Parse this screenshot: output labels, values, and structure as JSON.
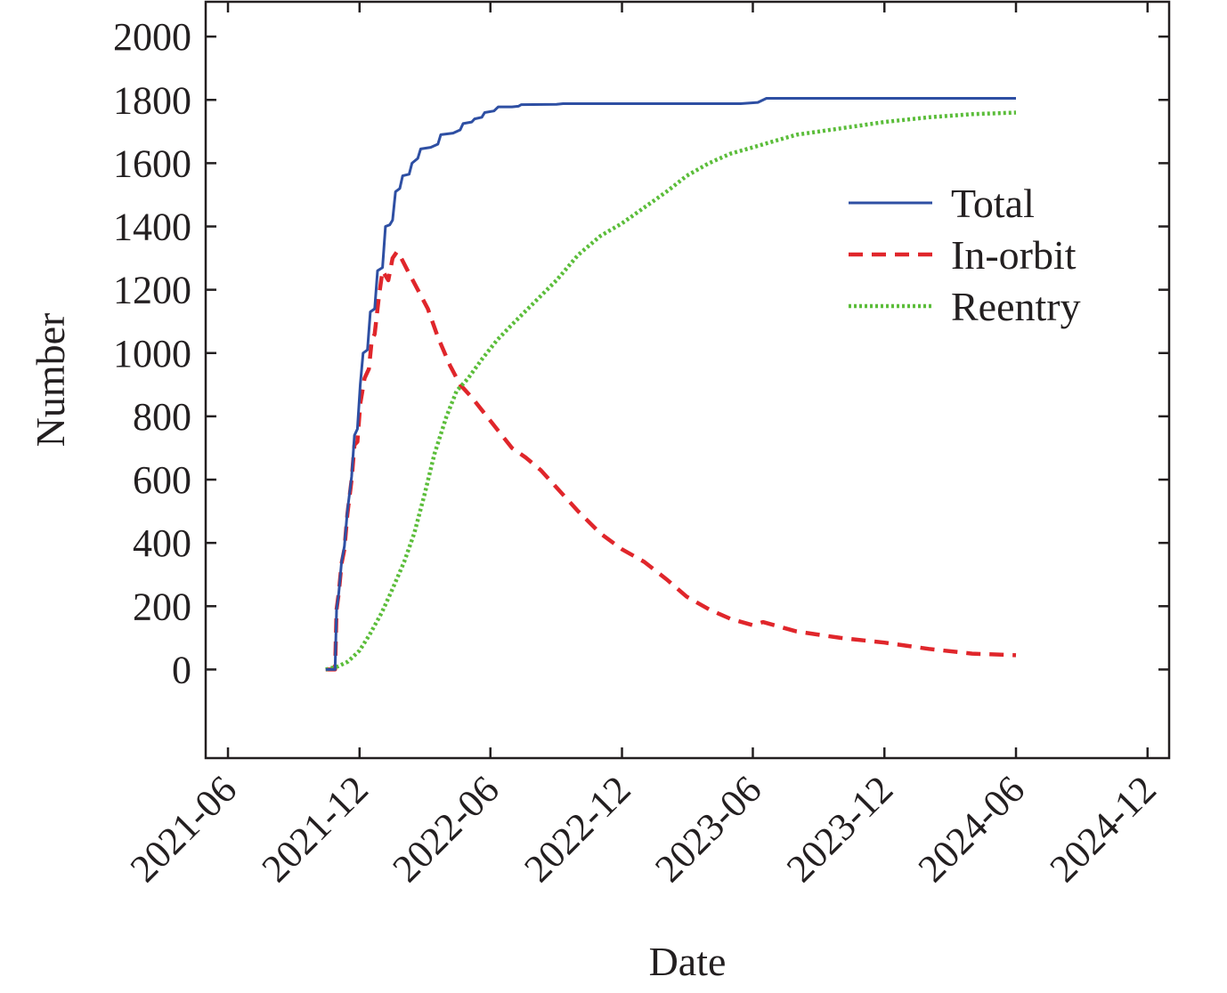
{
  "chart_data": {
    "type": "line",
    "title": "",
    "xlabel": "Date",
    "ylabel": "Number",
    "x_ticks": [
      "2021-06",
      "2021-12",
      "2022-06",
      "2022-12",
      "2023-06",
      "2023-12",
      "2024-06",
      "2024-12"
    ],
    "y_ticks": [
      0,
      200,
      400,
      600,
      800,
      1000,
      1200,
      1400,
      1600,
      1800,
      2000
    ],
    "xlim": [
      "2021-05-01",
      "2024-12-31"
    ],
    "ylim": [
      -280,
      2110
    ],
    "grid": false,
    "legend_position": "upper-right",
    "series": [
      {
        "name": "Total",
        "color": "#2e4fa3",
        "dash": "solid",
        "points": [
          [
            "2021-10-15",
            0
          ],
          [
            "2021-10-28",
            0
          ],
          [
            "2021-10-30",
            190
          ],
          [
            "2021-11-02",
            240
          ],
          [
            "2021-11-06",
            340
          ],
          [
            "2021-11-10",
            390
          ],
          [
            "2021-11-14",
            500
          ],
          [
            "2021-11-20",
            610
          ],
          [
            "2021-11-24",
            740
          ],
          [
            "2021-11-28",
            760
          ],
          [
            "2021-12-02",
            900
          ],
          [
            "2021-12-06",
            1000
          ],
          [
            "2021-12-12",
            1010
          ],
          [
            "2021-12-16",
            1130
          ],
          [
            "2021-12-22",
            1140
          ],
          [
            "2021-12-26",
            1260
          ],
          [
            "2022-01-02",
            1270
          ],
          [
            "2022-01-06",
            1400
          ],
          [
            "2022-01-12",
            1405
          ],
          [
            "2022-01-16",
            1420
          ],
          [
            "2022-01-20",
            1510
          ],
          [
            "2022-01-26",
            1520
          ],
          [
            "2022-01-30",
            1560
          ],
          [
            "2022-02-08",
            1565
          ],
          [
            "2022-02-12",
            1600
          ],
          [
            "2022-02-20",
            1615
          ],
          [
            "2022-02-24",
            1645
          ],
          [
            "2022-03-10",
            1650
          ],
          [
            "2022-03-20",
            1660
          ],
          [
            "2022-03-24",
            1690
          ],
          [
            "2022-04-10",
            1695
          ],
          [
            "2022-04-20",
            1705
          ],
          [
            "2022-04-24",
            1725
          ],
          [
            "2022-05-06",
            1730
          ],
          [
            "2022-05-10",
            1740
          ],
          [
            "2022-05-20",
            1745
          ],
          [
            "2022-05-24",
            1760
          ],
          [
            "2022-06-06",
            1765
          ],
          [
            "2022-06-12",
            1778
          ],
          [
            "2022-07-01",
            1778
          ],
          [
            "2022-07-10",
            1780
          ],
          [
            "2022-07-14",
            1785
          ],
          [
            "2022-09-01",
            1786
          ],
          [
            "2022-09-10",
            1788
          ],
          [
            "2023-05-15",
            1788
          ],
          [
            "2023-06-08",
            1792
          ],
          [
            "2023-06-20",
            1805
          ],
          [
            "2024-06-01",
            1805
          ]
        ]
      },
      {
        "name": "In-orbit",
        "color": "#e0262b",
        "dash": "dashed",
        "points": [
          [
            "2021-10-15",
            0
          ],
          [
            "2021-10-28",
            0
          ],
          [
            "2021-10-30",
            190
          ],
          [
            "2021-11-02",
            240
          ],
          [
            "2021-11-06",
            335
          ],
          [
            "2021-11-10",
            380
          ],
          [
            "2021-11-14",
            490
          ],
          [
            "2021-11-20",
            600
          ],
          [
            "2021-11-24",
            710
          ],
          [
            "2021-11-28",
            720
          ],
          [
            "2021-12-02",
            840
          ],
          [
            "2021-12-08",
            920
          ],
          [
            "2021-12-14",
            950
          ],
          [
            "2021-12-18",
            1040
          ],
          [
            "2021-12-22",
            1060
          ],
          [
            "2021-12-28",
            1180
          ],
          [
            "2022-01-02",
            1260
          ],
          [
            "2022-01-10",
            1230
          ],
          [
            "2022-01-16",
            1300
          ],
          [
            "2022-01-22",
            1320
          ],
          [
            "2022-01-28",
            1300
          ],
          [
            "2022-02-06",
            1260
          ],
          [
            "2022-02-20",
            1200
          ],
          [
            "2022-03-06",
            1140
          ],
          [
            "2022-03-20",
            1050
          ],
          [
            "2022-04-06",
            960
          ],
          [
            "2022-04-20",
            900
          ],
          [
            "2022-05-06",
            860
          ],
          [
            "2022-05-20",
            820
          ],
          [
            "2022-06-10",
            760
          ],
          [
            "2022-07-01",
            700
          ],
          [
            "2022-07-20",
            670
          ],
          [
            "2022-08-10",
            630
          ],
          [
            "2022-09-01",
            575
          ],
          [
            "2022-10-01",
            500
          ],
          [
            "2022-11-01",
            430
          ],
          [
            "2022-12-01",
            380
          ],
          [
            "2023-01-01",
            340
          ],
          [
            "2023-02-01",
            285
          ],
          [
            "2023-03-01",
            230
          ],
          [
            "2023-04-01",
            190
          ],
          [
            "2023-05-01",
            160
          ],
          [
            "2023-06-01",
            140
          ],
          [
            "2023-06-15",
            150
          ],
          [
            "2023-08-01",
            120
          ],
          [
            "2023-10-01",
            100
          ],
          [
            "2023-12-01",
            85
          ],
          [
            "2024-02-01",
            65
          ],
          [
            "2024-04-01",
            50
          ],
          [
            "2024-06-01",
            45
          ]
        ]
      },
      {
        "name": "Reentry",
        "color": "#5bbd3a",
        "dash": "dotted",
        "points": [
          [
            "2021-10-15",
            0
          ],
          [
            "2021-11-01",
            10
          ],
          [
            "2021-11-15",
            25
          ],
          [
            "2021-12-01",
            60
          ],
          [
            "2021-12-15",
            110
          ],
          [
            "2022-01-01",
            180
          ],
          [
            "2022-01-15",
            250
          ],
          [
            "2022-02-01",
            340
          ],
          [
            "2022-02-15",
            430
          ],
          [
            "2022-03-01",
            550
          ],
          [
            "2022-03-15",
            680
          ],
          [
            "2022-04-01",
            800
          ],
          [
            "2022-04-15",
            880
          ],
          [
            "2022-05-01",
            920
          ],
          [
            "2022-05-20",
            980
          ],
          [
            "2022-06-10",
            1040
          ],
          [
            "2022-07-01",
            1090
          ],
          [
            "2022-08-01",
            1160
          ],
          [
            "2022-09-01",
            1230
          ],
          [
            "2022-10-01",
            1310
          ],
          [
            "2022-11-01",
            1370
          ],
          [
            "2022-12-01",
            1410
          ],
          [
            "2023-01-01",
            1460
          ],
          [
            "2023-02-01",
            1510
          ],
          [
            "2023-03-01",
            1560
          ],
          [
            "2023-04-01",
            1600
          ],
          [
            "2023-05-01",
            1630
          ],
          [
            "2023-06-01",
            1650
          ],
          [
            "2023-07-01",
            1670
          ],
          [
            "2023-08-01",
            1690
          ],
          [
            "2023-10-01",
            1710
          ],
          [
            "2023-12-01",
            1730
          ],
          [
            "2024-02-01",
            1745
          ],
          [
            "2024-04-01",
            1755
          ],
          [
            "2024-06-01",
            1760
          ]
        ]
      }
    ]
  }
}
